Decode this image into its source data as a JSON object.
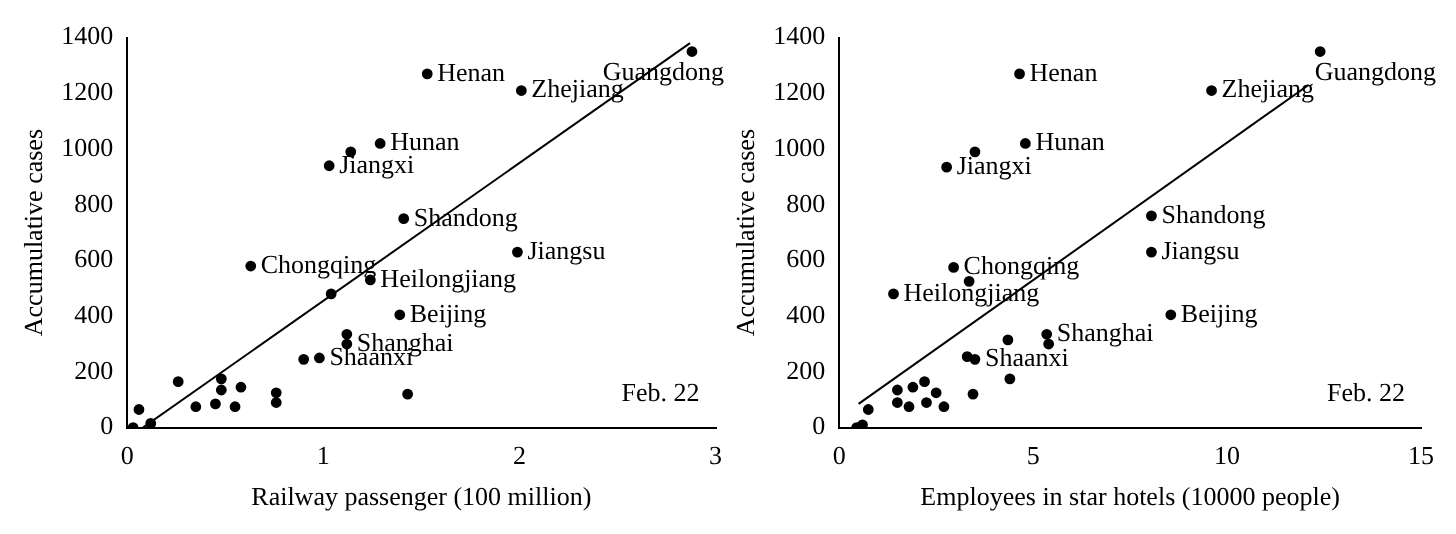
{
  "chart_data": [
    {
      "type": "scatter",
      "xlabel": "Railway passenger (100 million)",
      "ylabel": "Accumulative cases",
      "xlim": [
        0,
        3
      ],
      "xticks": [
        0,
        1,
        2,
        3
      ],
      "ylim": [
        0,
        1400
      ],
      "yticks": [
        0,
        200,
        400,
        600,
        800,
        1000,
        1200,
        1400
      ],
      "grid": false,
      "legend": false,
      "series": [
        {
          "marker": "circle",
          "color": "#000000",
          "x": [
            2.88,
            1.53,
            2.01,
            1.29,
            1.14,
            1.03,
            1.41,
            1.99,
            0.63,
            1.04,
            1.24,
            1.39,
            1.12,
            1.12,
            0.9,
            0.98,
            1.43,
            0.26,
            0.06,
            0.03,
            0.12,
            0.35,
            0.45,
            0.48,
            0.48,
            0.55,
            0.58,
            0.76,
            0.76
          ],
          "values": [
            1350,
            1270,
            1210,
            1020,
            990,
            940,
            750,
            630,
            580,
            480,
            530,
            405,
            335,
            300,
            245,
            250,
            120,
            165,
            65,
            0,
            15,
            75,
            85,
            175,
            135,
            75,
            145,
            125,
            90
          ]
        },
        {
          "type": "line",
          "color": "#000000",
          "x": [
            0.08,
            2.87
          ],
          "values": [
            0,
            1380
          ]
        }
      ],
      "annotations": [
        {
          "text": "Guangdong",
          "x": 2.88,
          "y": 1350
        },
        {
          "text": "Henan",
          "x": 1.53,
          "y": 1270
        },
        {
          "text": "Zhejiang",
          "x": 2.01,
          "y": 1210
        },
        {
          "text": "Hunan",
          "x": 1.29,
          "y": 1020
        },
        {
          "text": "Jiangxi",
          "x": 1.03,
          "y": 940
        },
        {
          "text": "Shandong",
          "x": 1.41,
          "y": 750
        },
        {
          "text": "Jiangsu",
          "x": 1.99,
          "y": 630
        },
        {
          "text": "Chongqing",
          "x": 0.63,
          "y": 580
        },
        {
          "text": "Heilongjiang",
          "x": 1.24,
          "y": 530
        },
        {
          "text": "Beijing",
          "x": 1.39,
          "y": 405
        },
        {
          "text": "Shanghai",
          "x": 1.12,
          "y": 300
        },
        {
          "text": "Shaanxi",
          "x": 0.98,
          "y": 250
        },
        "Feb. 22"
      ]
    },
    {
      "type": "scatter",
      "xlabel": "Employees in star hotels (10000 people)",
      "ylabel": "Accumulative cases",
      "xlim": [
        0,
        15
      ],
      "xticks": [
        0,
        5,
        10,
        15
      ],
      "ylim": [
        0,
        1400
      ],
      "yticks": [
        0,
        200,
        400,
        600,
        800,
        1000,
        1200,
        1400
      ],
      "grid": false,
      "legend": false,
      "series": [
        {
          "marker": "circle",
          "color": "#000000",
          "x": [
            12.4,
            4.65,
            9.6,
            4.8,
            3.5,
            2.77,
            8.05,
            8.05,
            2.95,
            3.35,
            1.4,
            8.55,
            5.35,
            5.4,
            4.35,
            3.3,
            3.5,
            4.4,
            3.45,
            1.5,
            1.9,
            2.2,
            2.5,
            1.5,
            1.8,
            2.25,
            2.7,
            0.75,
            0.6,
            0.45
          ],
          "values": [
            1350,
            1270,
            1210,
            1020,
            990,
            935,
            760,
            630,
            575,
            525,
            480,
            405,
            335,
            300,
            315,
            255,
            245,
            175,
            120,
            135,
            145,
            165,
            125,
            90,
            75,
            90,
            75,
            65,
            10,
            0
          ]
        },
        {
          "type": "line",
          "color": "#000000",
          "x": [
            0.5,
            12.1
          ],
          "values": [
            85,
            1230
          ]
        }
      ],
      "annotations": [
        {
          "text": "Guangdong",
          "x": 12.4,
          "y": 1350
        },
        {
          "text": "Henan",
          "x": 4.65,
          "y": 1270
        },
        {
          "text": "Zhejiang",
          "x": 9.6,
          "y": 1210
        },
        {
          "text": "Hunan",
          "x": 4.8,
          "y": 1020
        },
        {
          "text": "Jiangxi",
          "x": 2.77,
          "y": 935
        },
        {
          "text": "Shandong",
          "x": 8.05,
          "y": 760
        },
        {
          "text": "Jiangsu",
          "x": 8.05,
          "y": 630
        },
        {
          "text": "Chongqing",
          "x": 2.95,
          "y": 575
        },
        {
          "text": "Heilongjiang",
          "x": 1.4,
          "y": 480
        },
        {
          "text": "Beijing",
          "x": 8.55,
          "y": 405
        },
        {
          "text": "Shanghai",
          "x": 5.35,
          "y": 335
        },
        {
          "text": "Shaanxi",
          "x": 3.5,
          "y": 245
        },
        "Feb. 22"
      ]
    }
  ]
}
